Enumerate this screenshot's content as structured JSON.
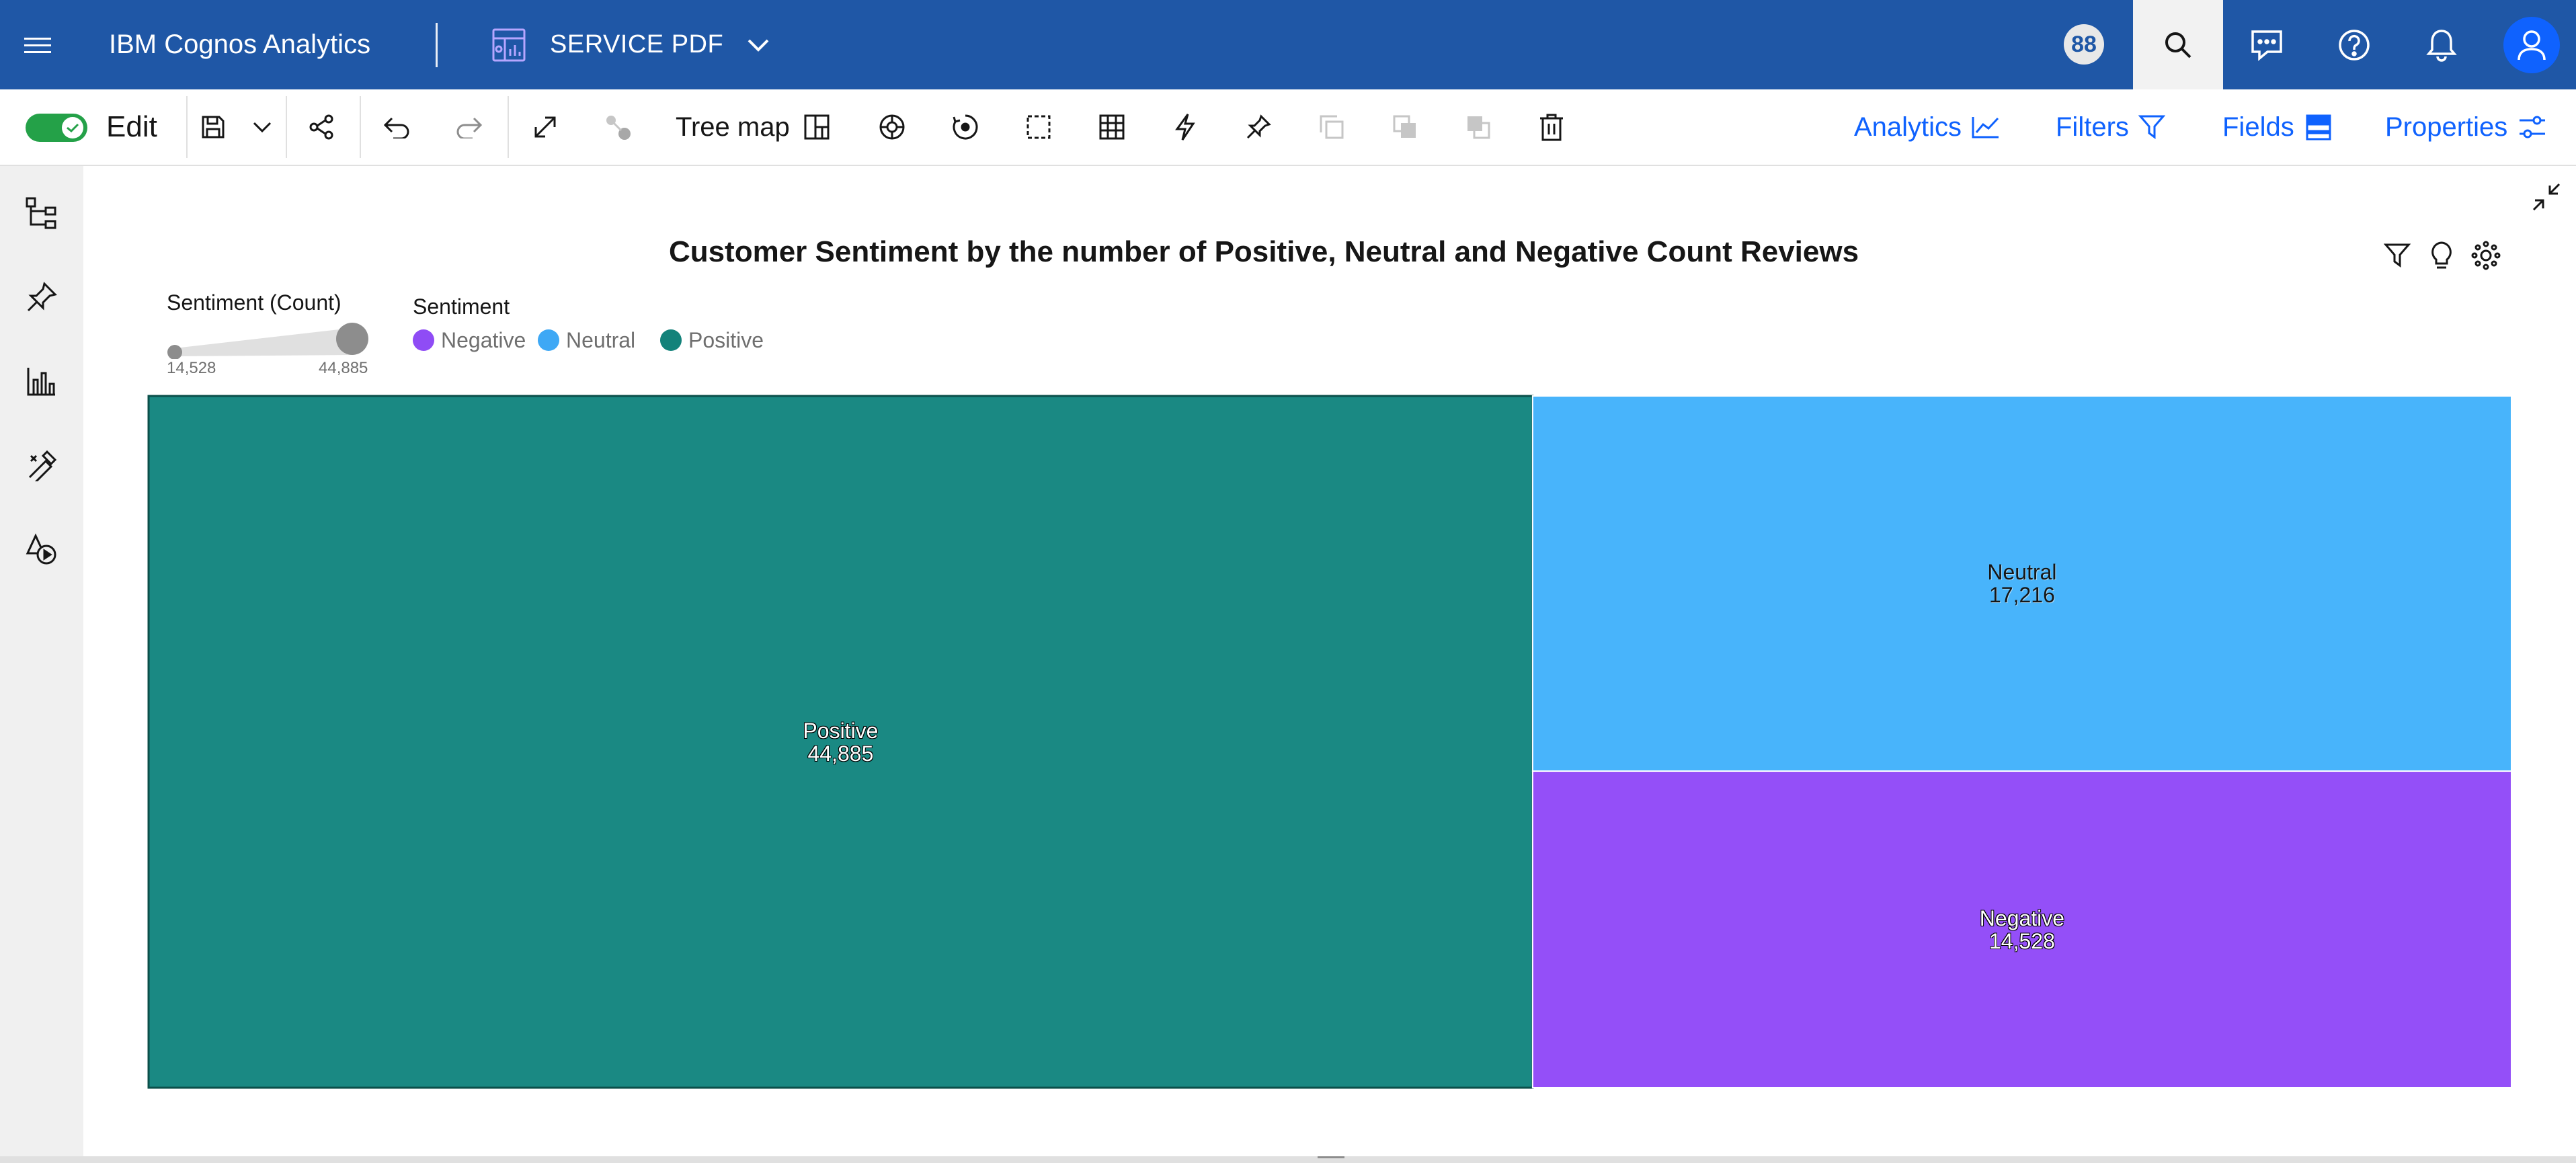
{
  "header": {
    "brand": "IBM Cognos Analytics",
    "title": "SERVICE PDF",
    "badge": "88"
  },
  "toolbar": {
    "edit_label": "Edit",
    "visualization_type": "Tree map",
    "links": {
      "analytics": "Analytics",
      "filters": "Filters",
      "fields": "Fields",
      "properties": "Properties"
    }
  },
  "legend": {
    "size_title": "Sentiment (Count)",
    "size_min": "14,528",
    "size_max": "44,885",
    "color_title": "Sentiment",
    "items": [
      {
        "label": "Negative",
        "color": "#8f4cf5"
      },
      {
        "label": "Neutral",
        "color": "#3ea8f5"
      },
      {
        "label": "Positive",
        "color": "#13827a"
      }
    ]
  },
  "colors": {
    "brand_bar": "#1f57a6",
    "link": "#0f62fe",
    "toggle_on": "#24a148",
    "positive": "#1a8983",
    "neutral": "#48b4fb",
    "negative": "#944ff8"
  },
  "chart_data": {
    "type": "treemap",
    "title": "Customer Sentiment by the number of Positive, Neutral and Negative Count Reviews",
    "size_measure": "Sentiment (Count)",
    "color_by": "Sentiment",
    "tiles": [
      {
        "name": "Positive",
        "value": 44885,
        "label": "44,885",
        "color": "#1a8983"
      },
      {
        "name": "Neutral",
        "value": 17216,
        "label": "17,216",
        "color": "#48b4fb"
      },
      {
        "name": "Negative",
        "value": 14528,
        "label": "14,528",
        "color": "#944ff8"
      }
    ]
  }
}
